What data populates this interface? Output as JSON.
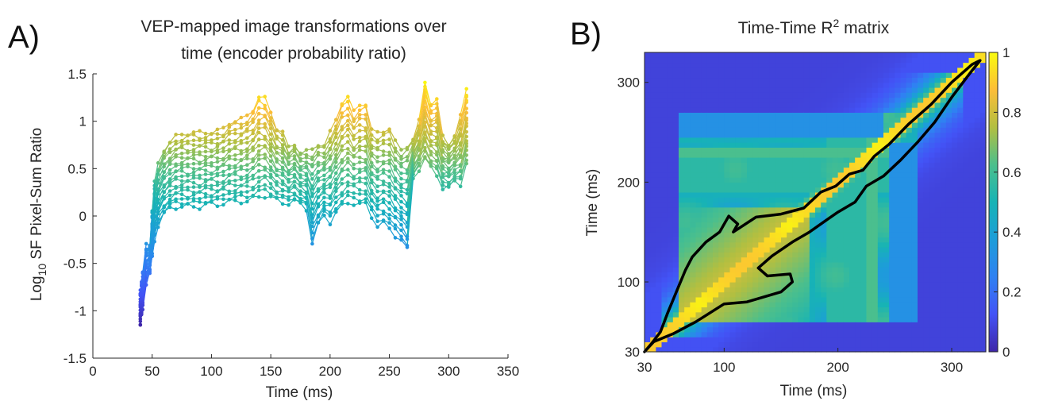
{
  "panels": {
    "a": {
      "letter": "A)",
      "title_line1": "VEP-mapped image transformations over",
      "title_line2": "time (encoder probability ratio)",
      "ylabel": "Log",
      "ylabel_sub": "10",
      "ylabel_rest": " SF Pixel-Sum Ratio",
      "xlabel": "Time (ms)"
    },
    "b": {
      "letter": "B)",
      "title_main": "Time-Time R",
      "title_sup": "2",
      "title_rest": " matrix",
      "ylabel": "Time (ms)",
      "xlabel": "Time (ms)"
    }
  },
  "chart_data": [
    {
      "type": "line",
      "title": "VEP-mapped image transformations over time (encoder probability ratio)",
      "xlabel": "Time (ms)",
      "ylabel": "Log10 SF Pixel-Sum Ratio",
      "xlim": [
        0,
        350
      ],
      "ylim": [
        -1.5,
        1.5
      ],
      "xticks": [
        "0",
        "50",
        "100",
        "150",
        "200",
        "250",
        "300",
        "350"
      ],
      "yticks": [
        "1.5",
        "1",
        "0.5",
        "0",
        "-0.5",
        "-1",
        "-1.5"
      ],
      "x": [
        40,
        41,
        42,
        45,
        48,
        50,
        52,
        55,
        60,
        65,
        70,
        75,
        80,
        85,
        90,
        95,
        100,
        105,
        110,
        115,
        120,
        125,
        130,
        135,
        140,
        145,
        150,
        155,
        160,
        165,
        170,
        175,
        180,
        185,
        190,
        195,
        200,
        205,
        210,
        215,
        220,
        225,
        230,
        235,
        240,
        245,
        250,
        255,
        260,
        265,
        270,
        275,
        280,
        285,
        290,
        295,
        300,
        305,
        310,
        315
      ],
      "upper": [
        -0.78,
        -0.7,
        -0.6,
        -0.31,
        -0.3,
        0.05,
        0.35,
        0.55,
        0.7,
        0.78,
        0.84,
        0.86,
        0.87,
        0.88,
        0.88,
        0.88,
        0.88,
        0.9,
        0.92,
        0.98,
        1.0,
        1.02,
        1.06,
        1.12,
        1.25,
        1.24,
        1.1,
        0.92,
        0.88,
        0.72,
        0.76,
        0.66,
        0.68,
        0.7,
        0.76,
        0.74,
        0.88,
        1.02,
        1.2,
        1.25,
        1.1,
        1.18,
        1.18,
        0.9,
        0.88,
        0.9,
        0.92,
        0.78,
        0.7,
        0.74,
        0.8,
        1.0,
        1.42,
        1.18,
        1.22,
        0.84,
        0.76,
        0.84,
        1.05,
        1.34
      ],
      "lower": [
        -1.15,
        -1.05,
        -0.98,
        -0.7,
        -0.6,
        -0.45,
        -0.25,
        -0.1,
        0.02,
        0.08,
        0.1,
        0.1,
        0.1,
        0.1,
        0.1,
        0.12,
        0.12,
        0.12,
        0.14,
        0.15,
        0.15,
        0.16,
        0.16,
        0.18,
        0.2,
        0.22,
        0.2,
        0.16,
        0.14,
        0.14,
        0.16,
        0.12,
        0.08,
        -0.28,
        -0.1,
        0.0,
        -0.06,
        0.04,
        0.1,
        0.14,
        0.14,
        0.12,
        0.12,
        0.0,
        -0.1,
        -0.08,
        -0.14,
        -0.2,
        -0.25,
        -0.36,
        0.4,
        0.5,
        0.6,
        0.5,
        0.44,
        0.3,
        0.3,
        0.36,
        0.34,
        0.56
      ],
      "n_series": 20,
      "colormap": "parula"
    },
    {
      "type": "heatmap",
      "title": "Time-Time R2 matrix",
      "xlabel": "Time (ms)",
      "ylabel": "Time (ms)",
      "xticks": [
        "30",
        "100",
        "200",
        "300"
      ],
      "yticks": [
        "30",
        "100",
        "200",
        "300"
      ],
      "range": [
        30,
        330
      ],
      "colorbar": {
        "min": 0,
        "max": 1,
        "ticks": [
          "0",
          "0.2",
          "0.4",
          "0.6",
          "0.8",
          "1"
        ],
        "colormap": "parula"
      },
      "contour_level": 0.8
    }
  ]
}
